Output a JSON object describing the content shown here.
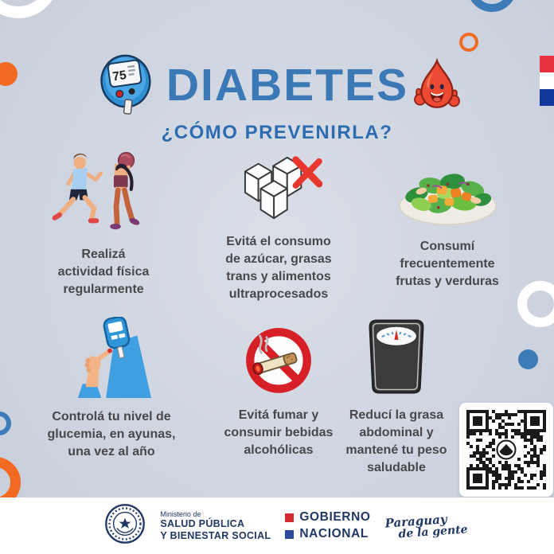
{
  "header": {
    "title": "DIABETES",
    "subtitle": "¿CÓMO PREVENIRLA?",
    "meter_value": "75"
  },
  "tips": [
    {
      "icon": "exercise-icon",
      "label": "Realizá\nactividad física\nregularmente"
    },
    {
      "icon": "sugar-cubes-crossed-icon",
      "label": "Evitá el consumo\nde azúcar, grasas\ntrans y alimentos\nultraprocesados"
    },
    {
      "icon": "salad-icon",
      "label": "Consumí\nfrecuentemente\nfrutas y verduras"
    },
    {
      "icon": "glucose-test-icon",
      "label": "Controlá tu nivel de\nglucemia, en ayunas,\nuna vez al año"
    },
    {
      "icon": "no-smoking-icon",
      "label": "Evitá fumar y\nconsumir bebidas\nalcohólicas"
    },
    {
      "icon": "weight-scale-icon",
      "label": "Reducí la grasa\nabdominal y\nmantené tu peso\nsaludable"
    }
  ],
  "footer": {
    "ministry_prefix": "Ministerio de",
    "ministry_name_line1": "SALUD PÚBLICA",
    "ministry_name_line2": "Y BIENESTAR SOCIAL",
    "government_line1": "GOBIERNO",
    "government_line2": "NACIONAL",
    "tagline_line1": "Paraguay",
    "tagline_line2": "de la gente"
  },
  "colors": {
    "title_blue": "#3a78b6",
    "subtitle_blue": "#2e6cb0",
    "body_text": "#48484a",
    "navy": "#203864",
    "accent_red": "#e8382e",
    "accent_orange": "#f26a21",
    "accent_blue": "#3d7ab8",
    "flag_red": "#e8313e",
    "flag_blue": "#10389c",
    "background": "#cfd5e0"
  }
}
